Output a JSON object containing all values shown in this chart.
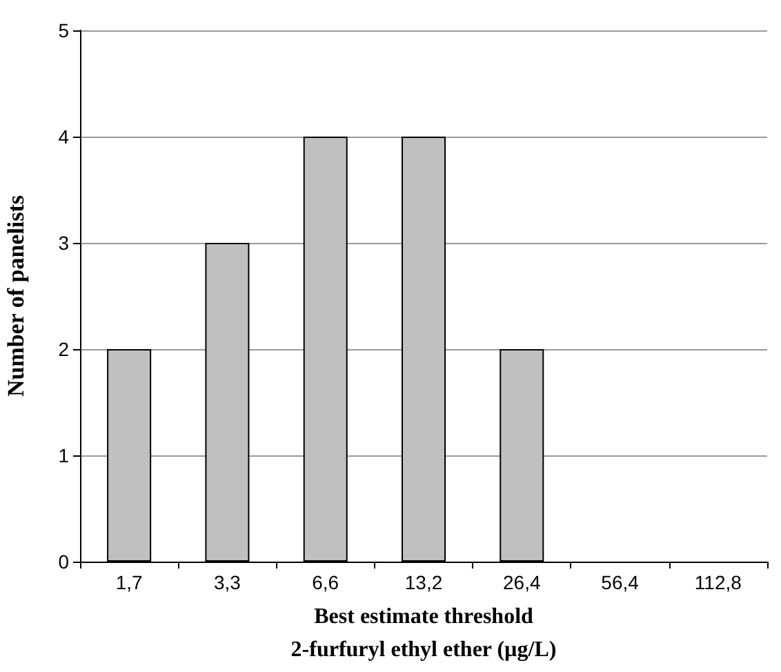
{
  "chart_data": {
    "type": "bar",
    "xlabel": "Best estimate threshold\n2-furfuryl ethyl ether (µg/L)",
    "ylabel": "Number of panelists",
    "categories": [
      "1,7",
      "3,3",
      "6,6",
      "13,2",
      "26,4",
      "56,4",
      "112,8"
    ],
    "values": [
      2,
      3,
      4,
      4,
      2,
      0,
      0
    ],
    "color": "#c0c0c0",
    "ylim": [
      0,
      5
    ],
    "yticks": [
      0,
      1,
      2,
      3,
      4,
      5
    ],
    "grid": "y"
  }
}
